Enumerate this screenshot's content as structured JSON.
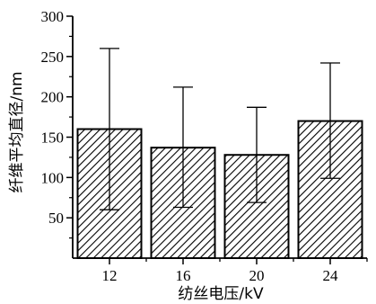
{
  "chart_data": {
    "type": "bar",
    "title": "",
    "xlabel": "纺丝电压/kV",
    "ylabel": "纤维平均直径/nm",
    "categories": [
      "12",
      "16",
      "20",
      "24"
    ],
    "values": [
      160,
      137,
      128,
      170
    ],
    "error_bars": [
      {
        "low": 60,
        "high": 260
      },
      {
        "low": 63,
        "high": 212
      },
      {
        "low": 69,
        "high": 187
      },
      {
        "low": 99,
        "high": 242
      }
    ],
    "ylim": [
      0,
      300
    ],
    "yticks": [
      50,
      100,
      150,
      200,
      250,
      300
    ],
    "grid": false,
    "bar_fill": "diagonal-hatch",
    "colors": {
      "bar_edge": "#000000",
      "hatch": "#000000",
      "background": "#ffffff"
    }
  }
}
